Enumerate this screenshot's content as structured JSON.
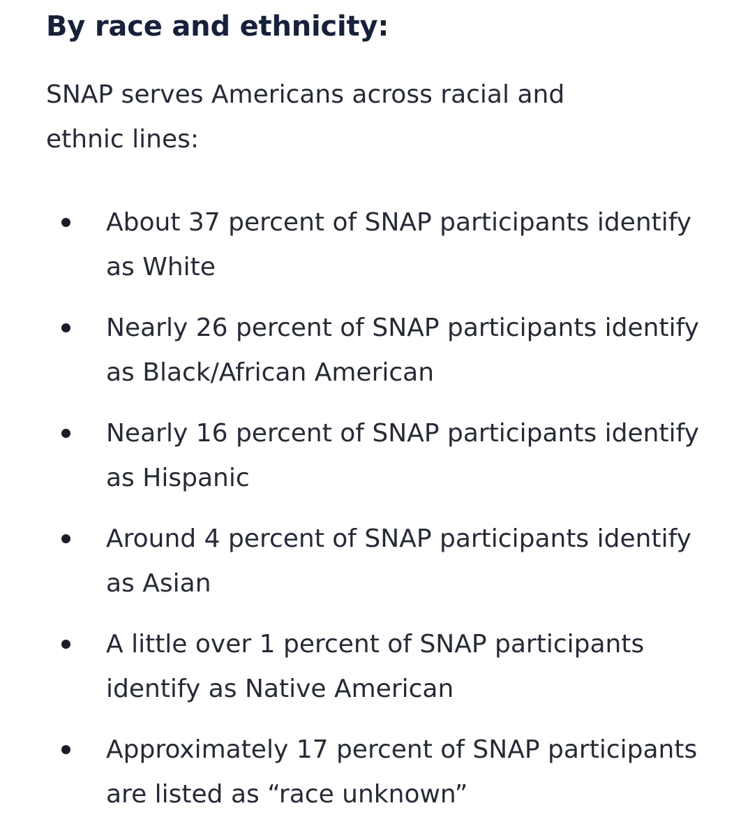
{
  "section": {
    "heading": "By race and ethnicity:",
    "intro": "SNAP serves Americans across racial and ethnic lines:",
    "bullets": [
      {
        "text": "About 37 percent of SNAP participants identify as White"
      },
      {
        "text": "Nearly 26 percent of SNAP participants identify as Black/African American"
      },
      {
        "text": "Nearly 16 percent of SNAP participants identify as Hispanic"
      },
      {
        "text": "Around 4 percent of SNAP participants identify as Asian"
      },
      {
        "text": "A little over 1 percent of SNAP participants identify as Native American"
      },
      {
        "text": "Approximately 17 percent of SNAP participants are listed as “race unknown”"
      }
    ]
  },
  "colors": {
    "heading": "#17213a",
    "body_text": "#262a36",
    "bullet": "#1a1d29",
    "background": "#ffffff"
  }
}
